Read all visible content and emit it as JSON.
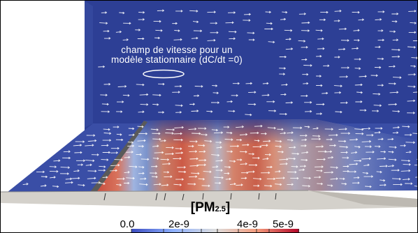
{
  "annotation": {
    "line1": "champ de vitesse pour un",
    "line2": "modèle stationnaire (dC/dt =0)"
  },
  "legend": {
    "title_main": "[PM",
    "title_sub": "2.5",
    "title_end": "]",
    "tick_labels": [
      "0.0",
      "2e-9",
      "4e-9",
      "5e-9"
    ],
    "colormap": [
      "#3b4cc0",
      "#8db0fe",
      "#dddddd",
      "#f49a7b",
      "#b40426"
    ]
  },
  "colors": {
    "sky_blue": "#2d3f95",
    "floor_blue": "#3a4ea6",
    "hot_red": "#c8533e",
    "arrow": "#ffffff"
  }
}
